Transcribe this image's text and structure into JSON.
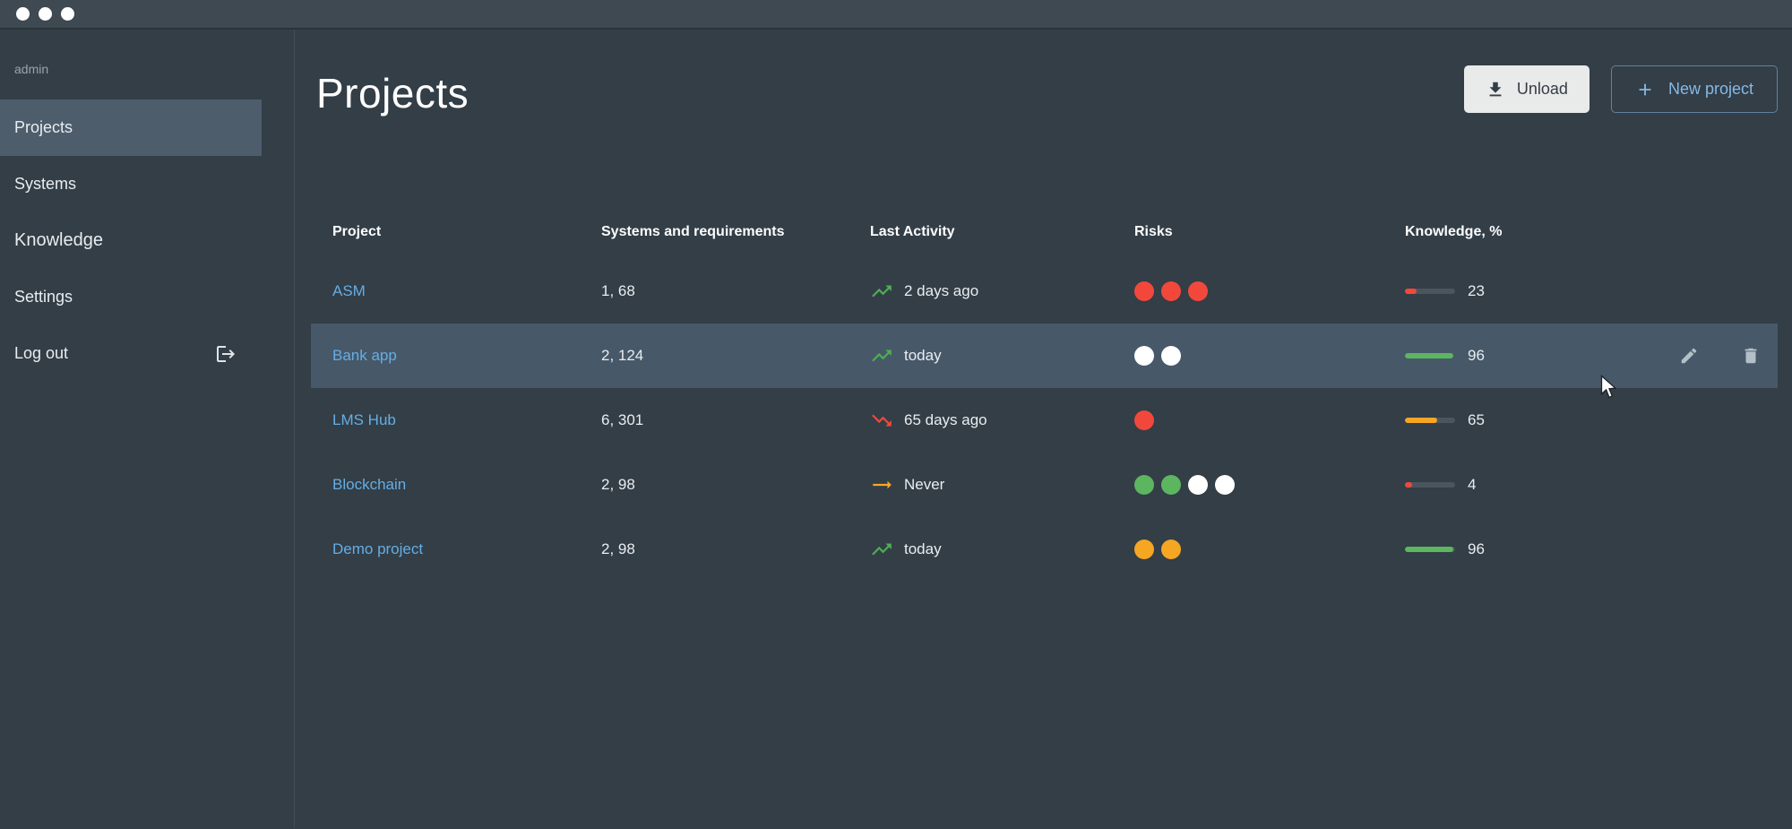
{
  "topbar": {
    "window_controls": [
      "dot-1",
      "dot-2",
      "dot-3"
    ]
  },
  "sidebar": {
    "user_label": "admin",
    "items": [
      {
        "label": "Projects",
        "active": true,
        "icon": null
      },
      {
        "label": "Systems",
        "active": false,
        "icon": null
      },
      {
        "label": "Knowledge",
        "active": false,
        "icon": null
      },
      {
        "label": "Settings",
        "active": false,
        "icon": null
      },
      {
        "label": "Log out",
        "active": false,
        "icon": "logout-icon"
      }
    ]
  },
  "header": {
    "title": "Projects",
    "unload_button": {
      "label": "Unload",
      "icon": "download-icon"
    },
    "new_project_button": {
      "label": "New project",
      "icon": "plus-icon"
    }
  },
  "table": {
    "columns": [
      "Project",
      "Systems and requirements",
      "Last Activity",
      "Risks",
      "Knowledge, %"
    ],
    "rows": [
      {
        "project": "ASM",
        "systems": "1, 68",
        "trend": "up",
        "last_activity": "2 days ago",
        "risks": [
          "red",
          "red",
          "red"
        ],
        "knowledge": 23,
        "knowledge_color": "red",
        "highlighted": false
      },
      {
        "project": "Bank app",
        "systems": "2, 124",
        "trend": "up",
        "last_activity": "today",
        "risks": [
          "white",
          "white"
        ],
        "knowledge": 96,
        "knowledge_color": "green",
        "highlighted": true
      },
      {
        "project": "LMS Hub",
        "systems": "6, 301",
        "trend": "down",
        "last_activity": "65 days ago",
        "risks": [
          "red"
        ],
        "knowledge": 65,
        "knowledge_color": "orange",
        "highlighted": false
      },
      {
        "project": "Blockchain",
        "systems": "2, 98",
        "trend": "flat",
        "last_activity": "Never",
        "risks": [
          "green",
          "green",
          "white",
          "white"
        ],
        "knowledge": 4,
        "knowledge_color": "red",
        "highlighted": false
      },
      {
        "project": "Demo project",
        "systems": "2, 98",
        "trend": "up",
        "last_activity": "today",
        "risks": [
          "orange",
          "orange"
        ],
        "knowledge": 96,
        "knowledge_color": "green",
        "highlighted": false
      }
    ]
  },
  "colors": {
    "red": "#f2483c",
    "green": "#5cb660",
    "orange": "#f5a623",
    "white": "#ffffff",
    "link_blue": "#64aee4",
    "accent_blue": "#85b9e8",
    "row_highlight": "#475869",
    "progress_track": "#4b555e",
    "background": "#333e47",
    "topbar_background": "#3e4951",
    "sidebar_active": "#4d5d6c"
  }
}
